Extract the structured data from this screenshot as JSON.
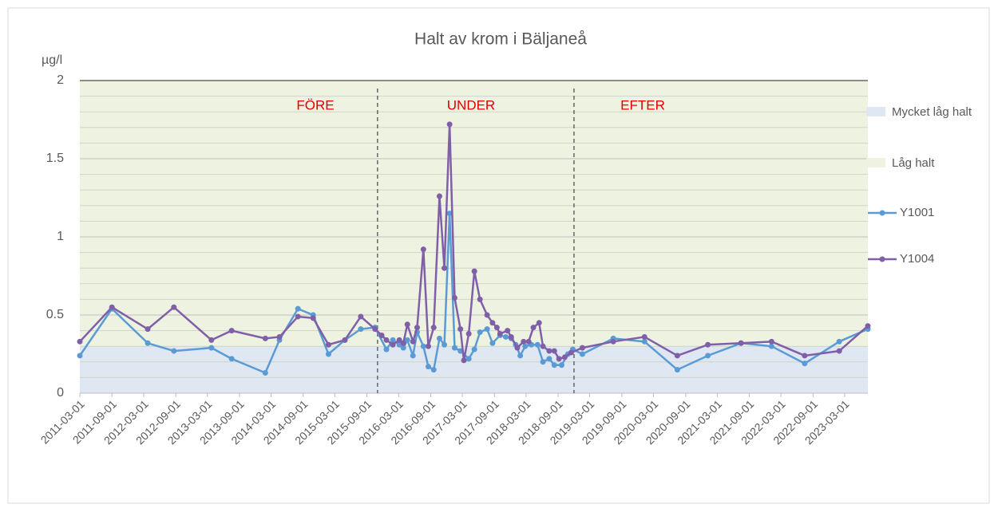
{
  "chart_data": {
    "type": "line",
    "title": "Halt av krom i Bäljaneå",
    "y_label": "µg/l",
    "xlim": [
      "2011-03-01",
      "2023-07-12"
    ],
    "xticks": [
      "2011-03-01",
      "2011-09-01",
      "2012-03-01",
      "2012-09-01",
      "2013-03-01",
      "2013-09-01",
      "2014-03-01",
      "2014-09-01",
      "2015-03-01",
      "2015-09-01",
      "2016-03-01",
      "2016-09-01",
      "2017-03-01",
      "2017-09-01",
      "2018-03-01",
      "2018-09-01",
      "2019-03-01",
      "2019-09-01",
      "2020-03-01",
      "2020-09-01",
      "2021-03-01",
      "2021-09-01",
      "2022-03-01",
      "2022-09-01",
      "2023-03-01"
    ],
    "ylim": [
      0,
      2
    ],
    "yticks": [
      0,
      0.5,
      1,
      1.5,
      2
    ],
    "grid": true,
    "minor_grid_step": 0.1,
    "bands": [
      {
        "name": "Mycket låg halt",
        "from": 0,
        "to": 0.3,
        "color": "#dfe7f3"
      },
      {
        "name": "Låg halt",
        "from": 0.3,
        "to": 2,
        "color": "#eef3e1"
      }
    ],
    "dividers": [
      "2015-11-01",
      "2018-12-01"
    ],
    "period_labels": [
      "FÖRE",
      "UNDER",
      "EFTER"
    ],
    "legend": "right",
    "series": [
      {
        "name": "Y1001",
        "color": "#5b9bd5",
        "x": [
          "2011-03-01",
          "2011-09-01",
          "2012-03-24",
          "2012-08-21",
          "2013-03-24",
          "2013-07-18",
          "2014-01-27",
          "2014-04-18",
          "2014-08-02",
          "2014-10-28",
          "2015-01-24",
          "2015-04-28",
          "2015-07-28",
          "2015-10-18",
          "2015-12-22",
          "2016-01-28",
          "2016-03-05",
          "2016-03-28",
          "2016-04-20",
          "2016-05-22",
          "2016-06-15",
          "2016-07-21",
          "2016-08-18",
          "2016-09-18",
          "2016-10-21",
          "2016-11-18",
          "2016-12-18",
          "2017-01-16",
          "2017-02-18",
          "2017-04-07",
          "2017-05-09",
          "2017-06-10",
          "2017-07-21",
          "2017-08-21",
          "2017-10-03",
          "2017-11-05",
          "2017-12-06",
          "2018-01-01",
          "2018-01-27",
          "2018-02-24",
          "2018-04-01",
          "2018-05-06",
          "2018-06-06",
          "2018-07-12",
          "2018-08-10",
          "2018-09-21",
          "2018-10-27",
          "2018-11-24",
          "2019-01-18",
          "2019-07-14",
          "2020-01-09",
          "2020-07-15",
          "2021-01-06",
          "2021-07-15",
          "2022-01-06",
          "2022-07-15",
          "2023-01-29",
          "2023-07-12"
        ],
        "values": [
          0.24,
          0.54,
          0.32,
          0.27,
          0.29,
          0.22,
          0.13,
          0.34,
          0.54,
          0.5,
          0.25,
          0.34,
          0.41,
          0.42,
          0.28,
          0.34,
          0.31,
          0.29,
          0.34,
          0.24,
          0.39,
          0.3,
          0.17,
          0.15,
          0.35,
          0.31,
          1.15,
          0.29,
          0.27,
          0.22,
          0.28,
          0.39,
          0.41,
          0.32,
          0.37,
          0.36,
          0.35,
          0.31,
          0.24,
          0.3,
          0.31,
          0.31,
          0.2,
          0.22,
          0.18,
          0.18,
          0.25,
          0.28,
          0.25,
          0.35,
          0.33,
          0.15,
          0.24,
          0.32,
          0.3,
          0.19,
          0.33,
          0.41
        ]
      },
      {
        "name": "Y1004",
        "color": "#7f5fa8",
        "x": [
          "2011-03-01",
          "2011-09-01",
          "2012-03-24",
          "2012-08-21",
          "2013-03-24",
          "2013-07-18",
          "2014-01-27",
          "2014-04-18",
          "2014-08-02",
          "2014-10-28",
          "2015-01-24",
          "2015-04-28",
          "2015-07-28",
          "2015-10-18",
          "2015-11-25",
          "2015-12-22",
          "2016-01-28",
          "2016-03-05",
          "2016-03-28",
          "2016-04-20",
          "2016-05-22",
          "2016-06-15",
          "2016-07-21",
          "2016-08-18",
          "2016-09-18",
          "2016-10-21",
          "2016-11-18",
          "2016-12-18",
          "2017-01-16",
          "2017-02-18",
          "2017-03-10",
          "2017-04-07",
          "2017-05-09",
          "2017-06-10",
          "2017-07-21",
          "2017-08-21",
          "2017-09-15",
          "2017-10-03",
          "2017-11-15",
          "2017-12-06",
          "2018-01-10",
          "2018-02-15",
          "2018-03-16",
          "2018-04-12",
          "2018-05-15",
          "2018-06-06",
          "2018-07-12",
          "2018-08-10",
          "2018-09-06",
          "2018-10-09",
          "2018-11-15",
          "2019-01-18",
          "2019-07-14",
          "2020-01-09",
          "2020-07-15",
          "2021-01-06",
          "2021-07-15",
          "2022-01-06",
          "2022-07-15",
          "2023-01-29",
          "2023-07-12"
        ],
        "values": [
          0.33,
          0.55,
          0.41,
          0.55,
          0.34,
          0.4,
          0.35,
          0.36,
          0.49,
          0.48,
          0.31,
          0.34,
          0.49,
          0.41,
          0.37,
          0.34,
          0.31,
          0.34,
          0.32,
          0.44,
          0.33,
          0.42,
          0.92,
          0.3,
          0.42,
          1.26,
          0.8,
          1.72,
          0.61,
          0.41,
          0.21,
          0.38,
          0.78,
          0.6,
          0.5,
          0.45,
          0.42,
          0.38,
          0.4,
          0.36,
          0.29,
          0.33,
          0.33,
          0.42,
          0.45,
          0.3,
          0.27,
          0.27,
          0.22,
          0.23,
          0.26,
          0.29,
          0.33,
          0.36,
          0.24,
          0.31,
          0.32,
          0.33,
          0.24,
          0.27,
          0.43
        ]
      }
    ]
  }
}
